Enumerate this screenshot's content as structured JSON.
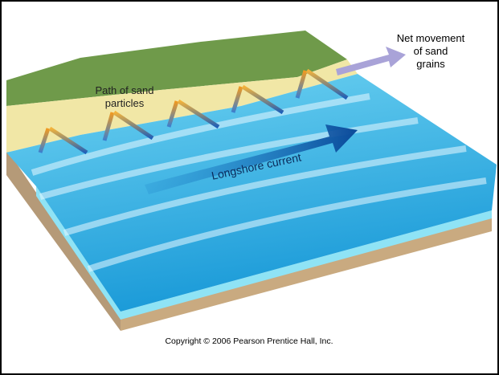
{
  "labels": {
    "net_movement": [
      "Net movement",
      "of sand",
      "grains"
    ],
    "path_of_sand": [
      "Path of sand",
      "particles"
    ],
    "longshore_current": "Longshore current"
  },
  "copyright": "Copyright © 2006 Pearson Prentice Hall, Inc."
}
